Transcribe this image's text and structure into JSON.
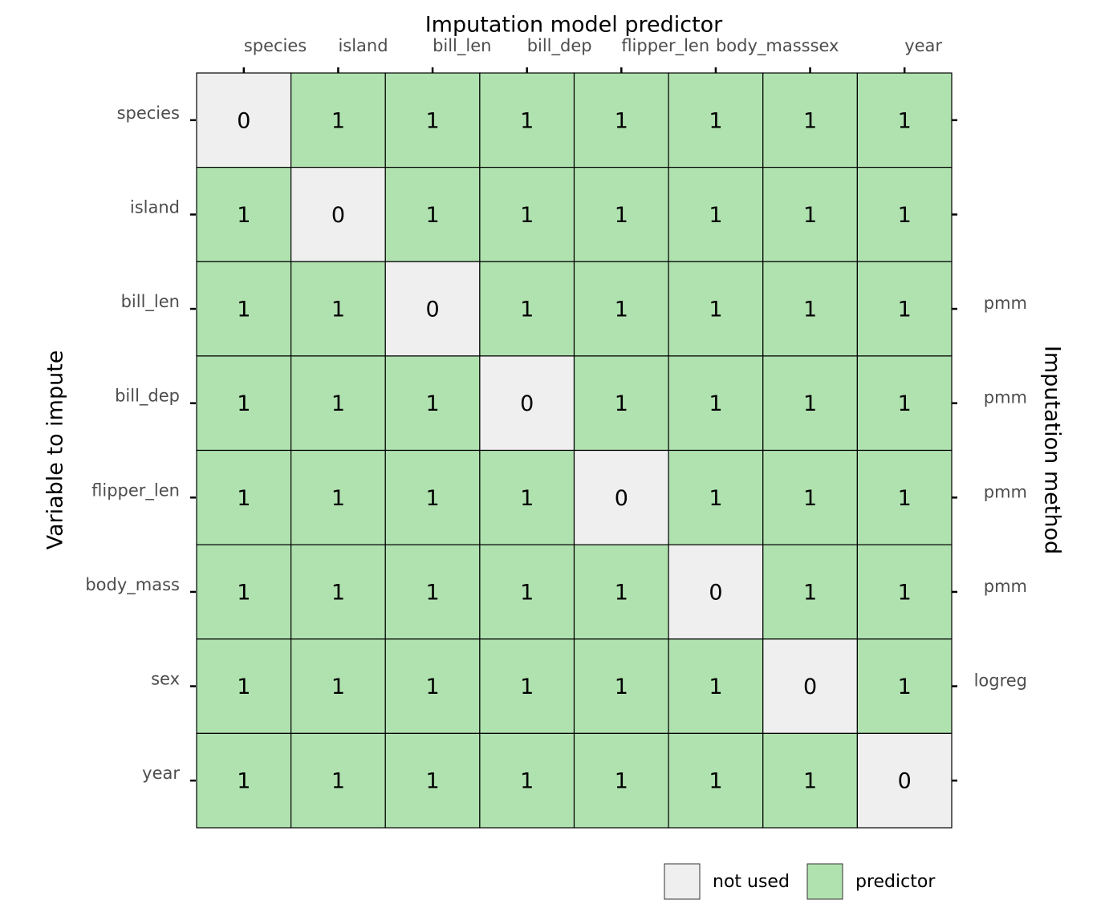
{
  "chart_data": {
    "type": "heatmap",
    "title": "Imputation model predictor",
    "y_label": "Variable to impute",
    "y2_label": "Imputation method",
    "x_categories": [
      "species",
      "island",
      "bill_len",
      "bill_dep",
      "flipper_len",
      "body_mass",
      "sex",
      "year"
    ],
    "y_categories": [
      "species",
      "island",
      "bill_len",
      "bill_dep",
      "flipper_len",
      "body_mass",
      "sex",
      "year"
    ],
    "y2_categories": [
      null,
      null,
      "pmm",
      "pmm",
      "pmm",
      "pmm",
      "logreg",
      null
    ],
    "values": [
      [
        0,
        1,
        1,
        1,
        1,
        1,
        1,
        1
      ],
      [
        1,
        0,
        1,
        1,
        1,
        1,
        1,
        1
      ],
      [
        1,
        1,
        0,
        1,
        1,
        1,
        1,
        1
      ],
      [
        1,
        1,
        1,
        0,
        1,
        1,
        1,
        1
      ],
      [
        1,
        1,
        1,
        1,
        0,
        1,
        1,
        1
      ],
      [
        1,
        1,
        1,
        1,
        1,
        0,
        1,
        1
      ],
      [
        1,
        1,
        1,
        1,
        1,
        1,
        0,
        1
      ],
      [
        1,
        1,
        1,
        1,
        1,
        1,
        1,
        0
      ]
    ],
    "legend": [
      {
        "name": "not used",
        "value": 0,
        "color": "#efefef"
      },
      {
        "name": "predictor",
        "value": 1,
        "color": "#b0e2b0"
      }
    ]
  }
}
